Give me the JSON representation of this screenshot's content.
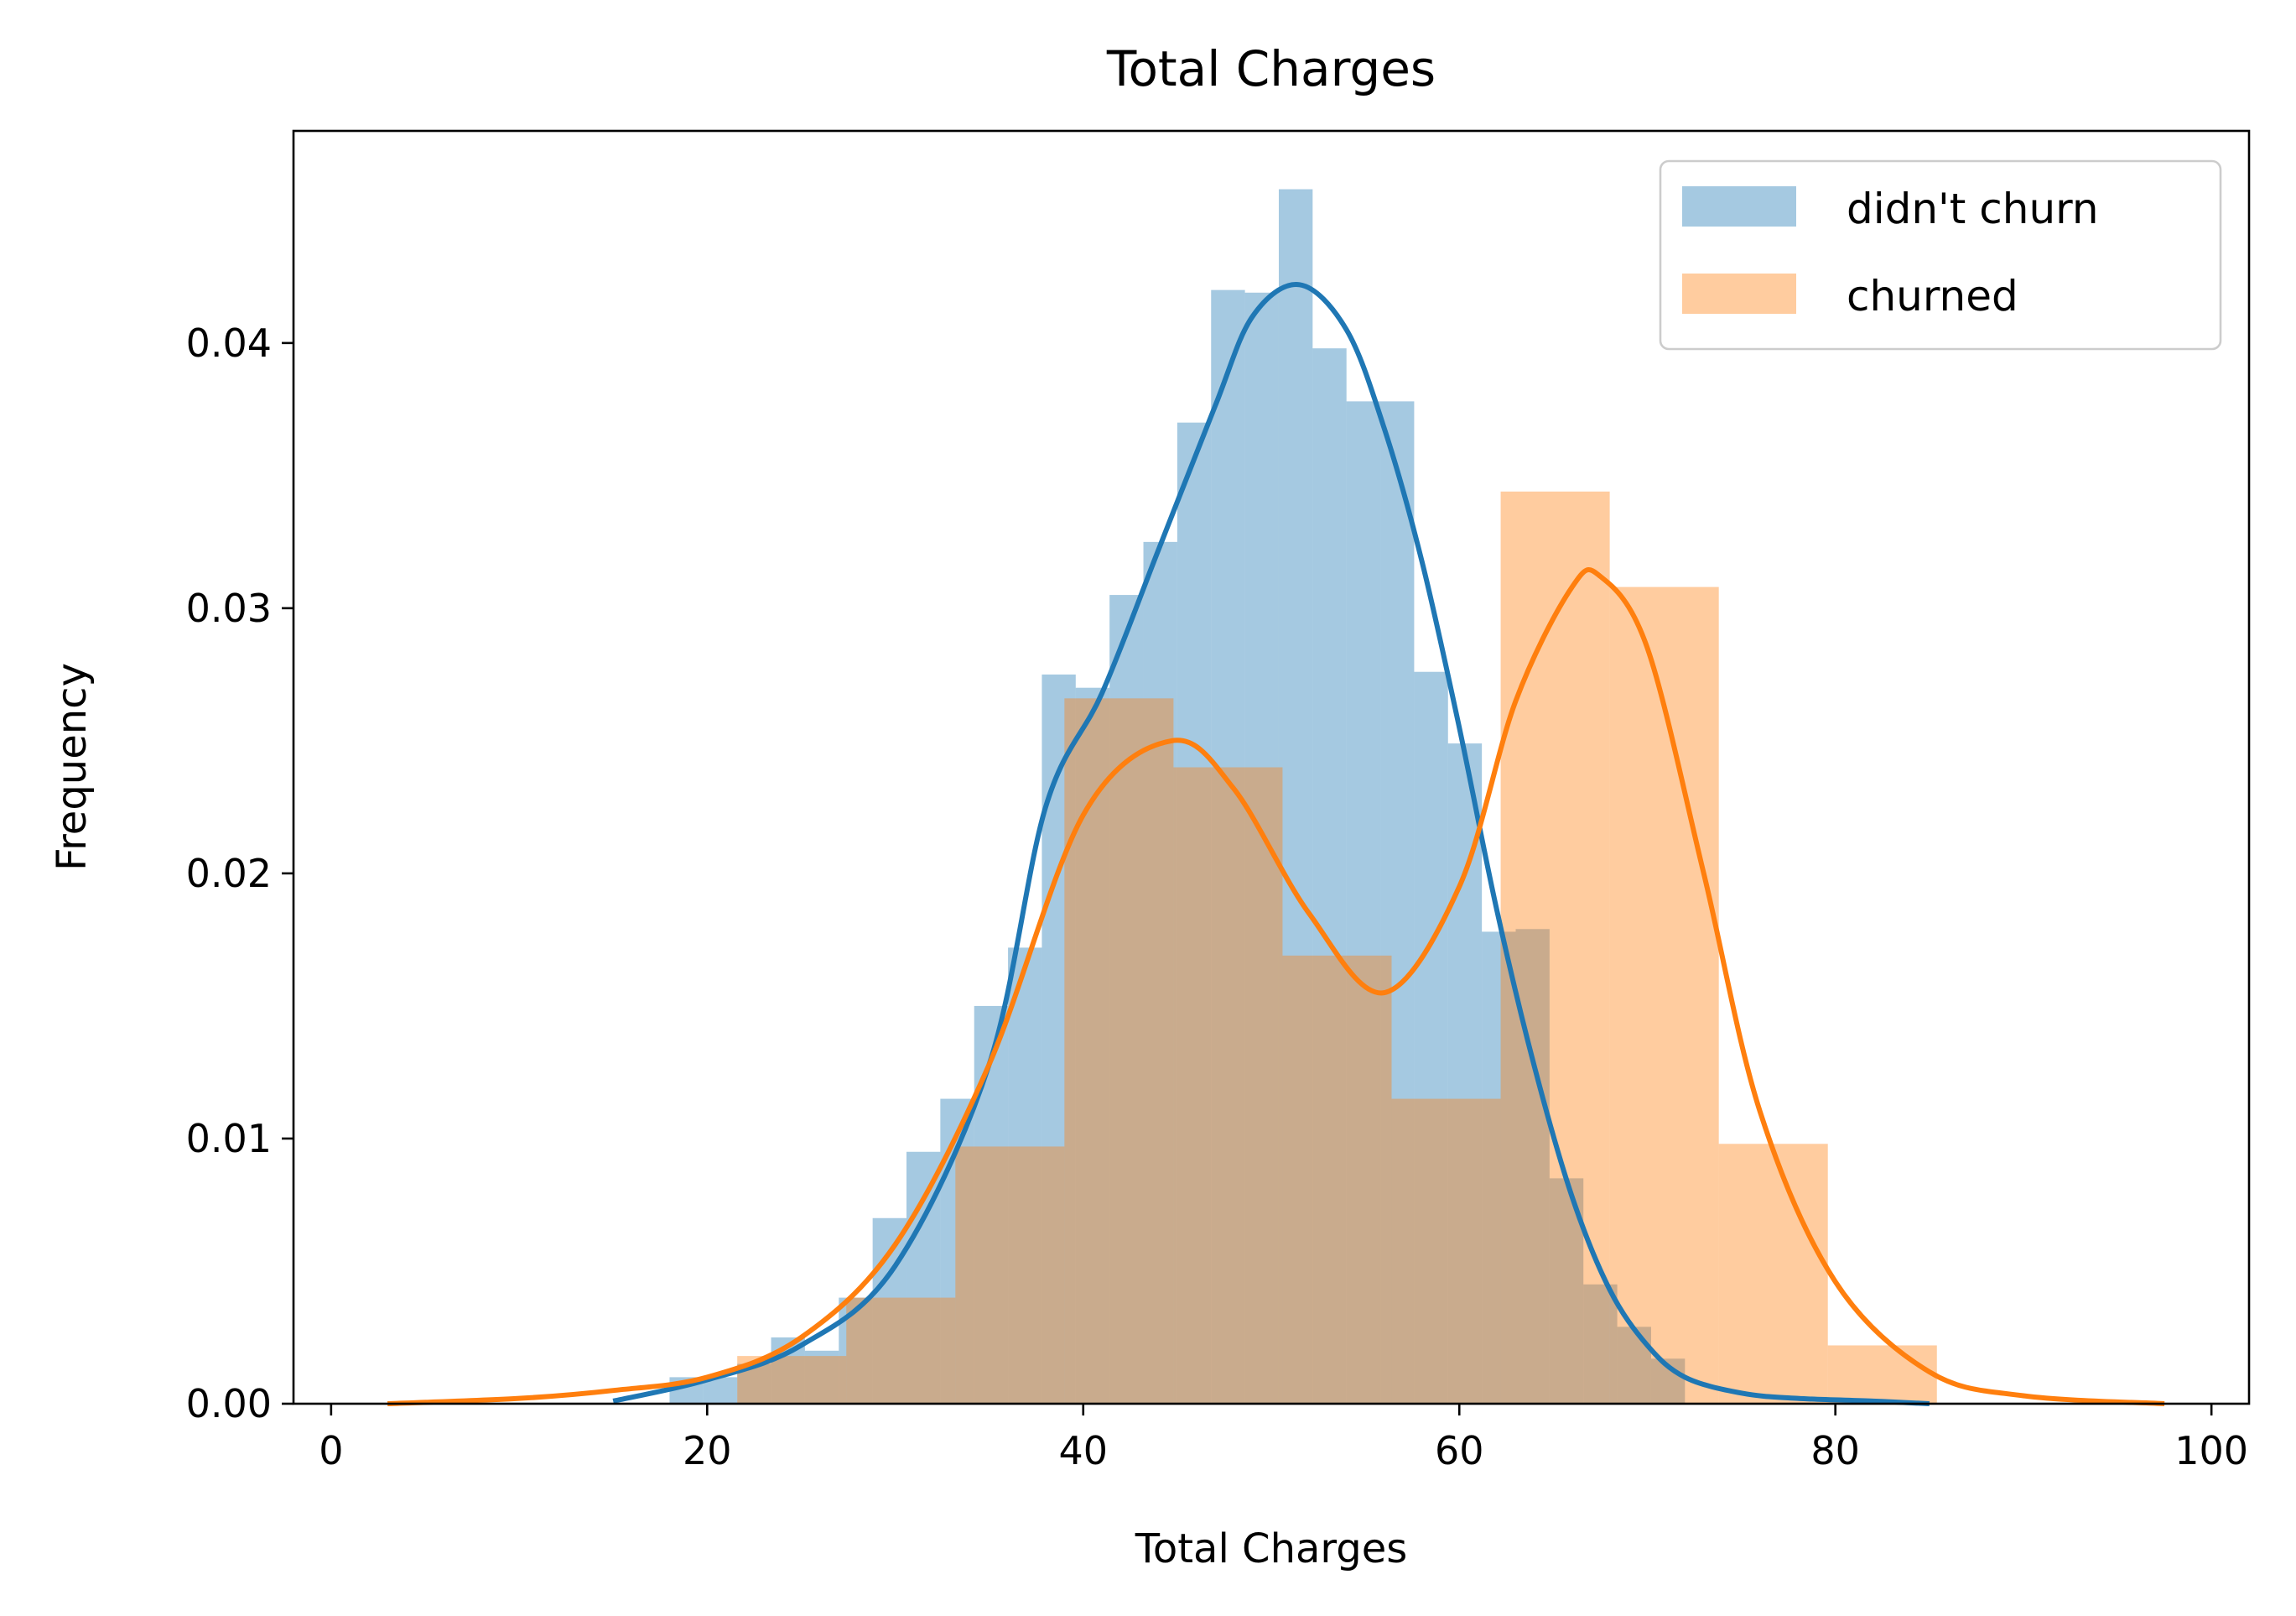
{
  "chart_data": {
    "type": "bar",
    "title": "Total Charges",
    "xlabel": "Total Charges",
    "ylabel": "Frequency",
    "xlim": [
      -2,
      102
    ],
    "ylim": [
      0,
      0.048
    ],
    "x_ticks": [
      0,
      20,
      40,
      60,
      80,
      100
    ],
    "x_tick_labels": [
      "0",
      "20",
      "40",
      "60",
      "80",
      "100"
    ],
    "y_ticks": [
      0,
      0.01,
      0.02,
      0.03,
      0.04
    ],
    "y_tick_labels": [
      "0.00",
      "0.01",
      "0.02",
      "0.03",
      "0.04"
    ],
    "legend_position": "upper-right",
    "grid": false,
    "series": [
      {
        "name": "didn't churn",
        "color": "#1f77b4",
        "hist_alpha": 0.4,
        "bin_edges": [
          18.0,
          19.8,
          21.6,
          23.4,
          25.2,
          27.0,
          28.8,
          30.6,
          32.4,
          34.2,
          36.0,
          37.8,
          39.6,
          41.4,
          43.2,
          45.0,
          46.8,
          48.6,
          50.4,
          52.2,
          54.0,
          55.8,
          57.6,
          59.4,
          61.2,
          63.0,
          64.8,
          66.6,
          68.4,
          70.2,
          72.0
        ],
        "values": [
          0.001,
          0.001,
          0.0015,
          0.0025,
          0.002,
          0.004,
          0.007,
          0.0095,
          0.0115,
          0.015,
          0.0172,
          0.0275,
          0.027,
          0.0305,
          0.0325,
          0.037,
          0.042,
          0.0419,
          0.0458,
          0.0398,
          0.0378,
          0.0378,
          0.0276,
          0.0249,
          0.0178,
          0.0179,
          0.0085,
          0.0045,
          0.0029,
          0.0017
        ],
        "kde_x": [
          15,
          20,
          25,
          30,
          35,
          38,
          41,
          44,
          47,
          49,
          51.5,
          54,
          56,
          58,
          60,
          62,
          64,
          66,
          68,
          70,
          72,
          75,
          78,
          82,
          85
        ],
        "kde_y": [
          0.0001,
          0.0009,
          0.0022,
          0.0052,
          0.0128,
          0.0225,
          0.0268,
          0.0322,
          0.0376,
          0.041,
          0.0422,
          0.0405,
          0.0368,
          0.0318,
          0.0255,
          0.0186,
          0.0127,
          0.0078,
          0.0043,
          0.0022,
          0.001,
          0.0004,
          0.0002,
          0.0001,
          0.0
        ]
      },
      {
        "name": "churned",
        "color": "#ff7f0e",
        "hist_alpha": 0.4,
        "bin_edges": [
          21.6,
          27.4,
          33.2,
          39.0,
          44.8,
          50.6,
          56.4,
          62.2,
          68.0,
          73.8,
          79.6,
          85.4
        ],
        "values": [
          0.0018,
          0.004,
          0.0097,
          0.0266,
          0.024,
          0.0169,
          0.0115,
          0.0344,
          0.0308,
          0.0098,
          0.0022
        ],
        "kde_x": [
          3,
          10,
          15,
          20,
          25,
          30,
          35,
          40,
          44.7,
          48,
          52,
          56,
          60,
          63,
          66,
          67.5,
          70,
          73,
          76,
          80,
          85,
          90,
          97.5
        ],
        "kde_y": [
          0.0,
          0.0002,
          0.0005,
          0.001,
          0.0025,
          0.006,
          0.0128,
          0.0222,
          0.025,
          0.0232,
          0.0185,
          0.0155,
          0.0195,
          0.0265,
          0.0308,
          0.0312,
          0.0285,
          0.02,
          0.011,
          0.0046,
          0.0012,
          0.0003,
          0.0
        ]
      }
    ]
  }
}
